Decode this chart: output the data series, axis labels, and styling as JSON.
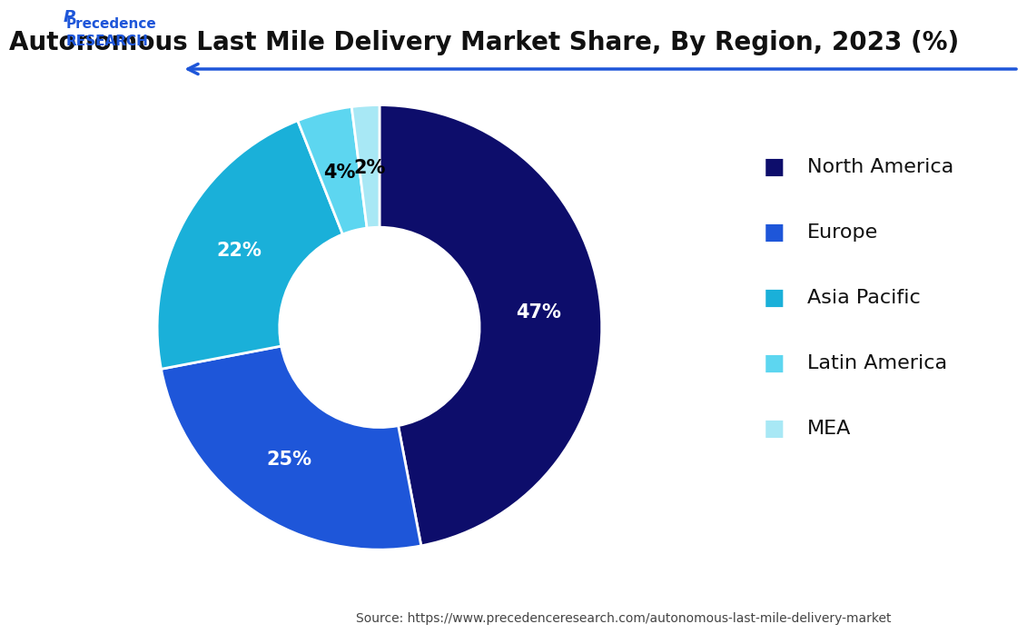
{
  "title": "Autonomous Last Mile Delivery Market Share, By Region, 2023 (%)",
  "labels": [
    "North America",
    "Europe",
    "Asia Pacific",
    "Latin America",
    "MEA"
  ],
  "values": [
    47,
    25,
    22,
    4,
    2
  ],
  "colors": [
    "#0d0d6b",
    "#1e56d9",
    "#1ab0d9",
    "#5dd6f0",
    "#a8e8f5"
  ],
  "label_colors": [
    "white",
    "white",
    "white",
    "black",
    "black"
  ],
  "source": "Source: https://www.precedenceresearch.com/autonomous-last-mile-delivery-market",
  "background_color": "#ffffff",
  "title_fontsize": 20,
  "legend_fontsize": 16,
  "pct_fontsize": 15
}
